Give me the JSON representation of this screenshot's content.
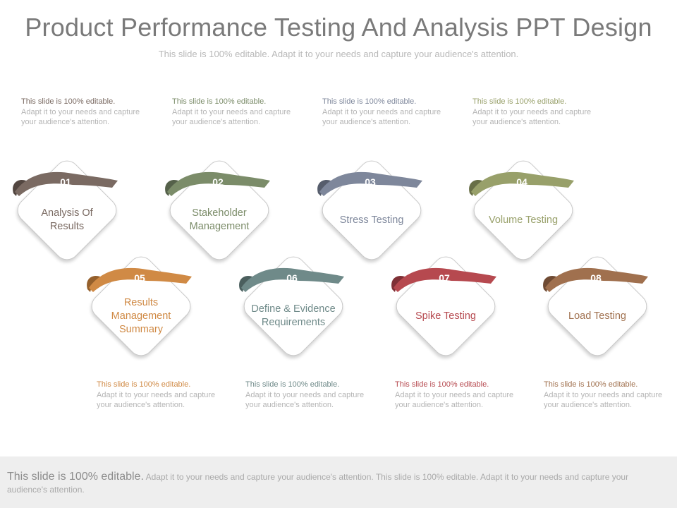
{
  "slide": {
    "title": "Product Performance Testing And Analysis PPT Design",
    "subtitle": "This slide is 100% editable. Adapt it to your needs and capture your audience's attention."
  },
  "items": [
    {
      "number": "01",
      "label": "Analysis Of Results",
      "color": "#7a6a62",
      "dark": "#524640",
      "note_lead": "This slide is 100% editable.",
      "note_body": "Adapt it to your needs and capture your audience's attention."
    },
    {
      "number": "02",
      "label": "Stakeholder Management",
      "color": "#7b8c69",
      "dark": "#55614a",
      "note_lead": "This slide is 100% editable.",
      "note_body": "Adapt it to your needs and capture your audience's attention."
    },
    {
      "number": "03",
      "label": "Stress Testing",
      "color": "#7e879b",
      "dark": "#565d6c",
      "note_lead": "This slide is 100% editable.",
      "note_body": "Adapt it to your needs and capture your audience's attention."
    },
    {
      "number": "04",
      "label": "Volume Testing",
      "color": "#98a06a",
      "dark": "#686f47",
      "note_lead": "This slide is 100% editable.",
      "note_body": "Adapt it to your needs and capture your audience's attention."
    },
    {
      "number": "05",
      "label": "Results Management Summary",
      "color": "#d08a45",
      "dark": "#95602c",
      "note_lead": "This slide is 100% editable.",
      "note_body": "Adapt it to your needs and capture your audience's attention."
    },
    {
      "number": "06",
      "label": "Define & Evidence Requirements",
      "color": "#6f8a89",
      "dark": "#4b5f5e",
      "note_lead": "This slide is 100% editable.",
      "note_body": "Adapt it to your needs and capture your audience's attention."
    },
    {
      "number": "07",
      "label": "Spike Testing",
      "color": "#b6494f",
      "dark": "#7f3036",
      "note_lead": "This slide is 100% editable.",
      "note_body": "Adapt it to your needs and capture your audience's attention."
    },
    {
      "number": "08",
      "label": "Load Testing",
      "color": "#a0704e",
      "dark": "#6f4b33",
      "note_lead": "This slide is 100% editable.",
      "note_body": "Adapt it to your needs and capture your audience's attention."
    }
  ],
  "footer": {
    "lead": "This slide is 100% editable.",
    "body": "Adapt it to your needs and capture your audience's attention. This slide is 100% editable. Adapt it to your needs and capture your audience's attention."
  }
}
